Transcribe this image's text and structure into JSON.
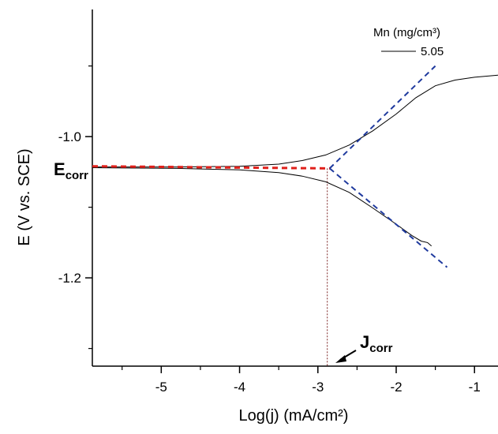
{
  "chart_data": {
    "type": "line",
    "xlabel": "Log(j) (mA/cm²)",
    "ylabel": "E (V vs. SCE)",
    "xlim": [
      -5.88,
      -0.7
    ],
    "ylim": [
      -1.325,
      -0.82
    ],
    "x_ticks": [
      -5,
      -4,
      -3,
      -2,
      -1
    ],
    "y_ticks": [
      -1.0,
      -1.2
    ],
    "x_tick_labels": [
      "-5",
      "-4",
      "-3",
      "-2",
      "-1"
    ],
    "y_tick_labels": [
      "-1.0",
      "-1.2"
    ],
    "legend": {
      "title": "Mn (mg/cm³)",
      "entries": [
        "5.05"
      ],
      "position": "top-right"
    },
    "series": [
      {
        "name": "5.05",
        "color": "#000000",
        "branch": "anodic",
        "points": [
          [
            -5.88,
            -1.043
          ],
          [
            -4.8,
            -1.043
          ],
          [
            -4.0,
            -1.042
          ],
          [
            -3.5,
            -1.039
          ],
          [
            -3.2,
            -1.034
          ],
          [
            -2.9,
            -1.026
          ],
          [
            -2.6,
            -1.012
          ],
          [
            -2.3,
            -0.992
          ],
          [
            -2.0,
            -0.968
          ],
          [
            -1.75,
            -0.945
          ],
          [
            -1.5,
            -0.928
          ],
          [
            -1.25,
            -0.92
          ],
          [
            -1.0,
            -0.916
          ],
          [
            -0.7,
            -0.913
          ]
        ]
      },
      {
        "name": "5.05",
        "color": "#000000",
        "branch": "cathodic",
        "points": [
          [
            -5.88,
            -1.044
          ],
          [
            -4.8,
            -1.045
          ],
          [
            -4.0,
            -1.047
          ],
          [
            -3.5,
            -1.051
          ],
          [
            -3.2,
            -1.056
          ],
          [
            -2.9,
            -1.064
          ],
          [
            -2.6,
            -1.079
          ],
          [
            -2.3,
            -1.101
          ],
          [
            -2.0,
            -1.124
          ],
          [
            -1.8,
            -1.14
          ],
          [
            -1.68,
            -1.148
          ],
          [
            -1.6,
            -1.15
          ],
          [
            -1.55,
            -1.155
          ]
        ]
      }
    ],
    "tafel_lines": [
      {
        "name": "anodic-tafel",
        "color": "#1f3a9e",
        "points": [
          [
            -2.85,
            -1.045
          ],
          [
            -1.5,
            -0.9
          ]
        ]
      },
      {
        "name": "cathodic-tafel",
        "color": "#1f3a9e",
        "points": [
          [
            -2.85,
            -1.045
          ],
          [
            -1.35,
            -1.185
          ]
        ]
      },
      {
        "name": "corrosion-potential-line",
        "color": "#e0201b",
        "points": [
          [
            -5.88,
            -1.042
          ],
          [
            -2.85,
            -1.045
          ]
        ]
      }
    ],
    "drop_line": {
      "color": "#7a2020",
      "points": [
        [
          -2.88,
          -1.045
        ],
        [
          -2.88,
          -1.325
        ]
      ]
    },
    "annotations": [
      {
        "id": "ecorr",
        "main": "E",
        "sub": "corr"
      },
      {
        "id": "jcorr",
        "main": "J",
        "sub": "corr"
      }
    ]
  }
}
